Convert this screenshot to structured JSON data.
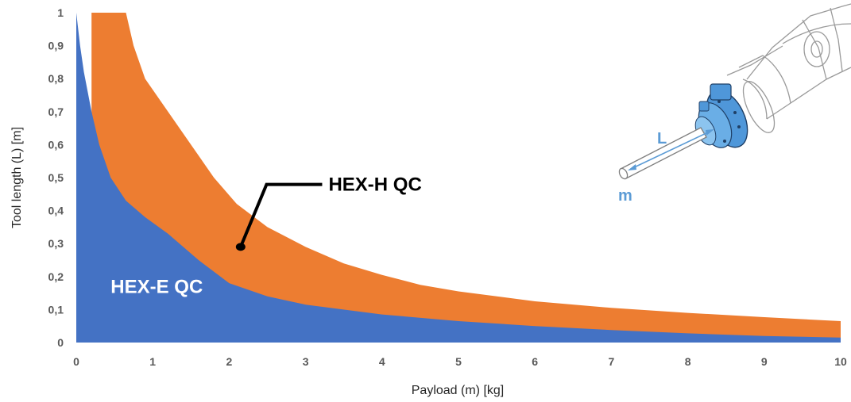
{
  "chart_data": {
    "type": "area",
    "title": "",
    "xlabel": "Payload (m) [kg]",
    "ylabel": "Tool length (L)  [m]",
    "xlim": [
      0,
      10
    ],
    "ylim": [
      0,
      1
    ],
    "grid": false,
    "x_ticks": [
      0,
      1,
      2,
      3,
      4,
      5,
      6,
      7,
      8,
      9,
      10
    ],
    "y_ticks": [
      0,
      0.1,
      0.2,
      0.3,
      0.4,
      0.5,
      0.6,
      0.7,
      0.8,
      0.9,
      1
    ],
    "x_tick_labels": [
      "0",
      "1",
      "2",
      "3",
      "4",
      "5",
      "6",
      "7",
      "8",
      "9",
      "10"
    ],
    "y_tick_labels": [
      "0",
      "0,1",
      "0,2",
      "0,3",
      "0,4",
      "0,5",
      "0,6",
      "0,7",
      "0,8",
      "0,9",
      "1"
    ],
    "series": [
      {
        "name": "HEX-H QC",
        "color": "#ED7D31",
        "points": [
          [
            0.2,
            1
          ],
          [
            0.65,
            1
          ],
          [
            0.75,
            0.9
          ],
          [
            0.9,
            0.8
          ],
          [
            1.2,
            0.7
          ],
          [
            1.5,
            0.6
          ],
          [
            1.8,
            0.5
          ],
          [
            2.1,
            0.42
          ],
          [
            2.5,
            0.35
          ],
          [
            3.0,
            0.29
          ],
          [
            3.5,
            0.24
          ],
          [
            4.0,
            0.205
          ],
          [
            4.5,
            0.175
          ],
          [
            5.0,
            0.155
          ],
          [
            6.0,
            0.125
          ],
          [
            7.0,
            0.105
          ],
          [
            8.0,
            0.09
          ],
          [
            9.0,
            0.077
          ],
          [
            10.0,
            0.065
          ]
        ]
      },
      {
        "name": "HEX-E QC",
        "color": "#4472C4",
        "points": [
          [
            0,
            1
          ],
          [
            0.05,
            0.9
          ],
          [
            0.1,
            0.82
          ],
          [
            0.2,
            0.7
          ],
          [
            0.3,
            0.6
          ],
          [
            0.45,
            0.5
          ],
          [
            0.65,
            0.43
          ],
          [
            0.9,
            0.38
          ],
          [
            1.2,
            0.33
          ],
          [
            1.6,
            0.25
          ],
          [
            2.0,
            0.18
          ],
          [
            2.5,
            0.14
          ],
          [
            3.0,
            0.115
          ],
          [
            4.0,
            0.085
          ],
          [
            5.0,
            0.065
          ],
          [
            6.0,
            0.05
          ],
          [
            7.0,
            0.038
          ],
          [
            8.0,
            0.028
          ],
          [
            9.0,
            0.02
          ],
          [
            10.0,
            0.015
          ]
        ]
      }
    ],
    "annotations": [
      {
        "text": "HEX-H QC",
        "color": "#000000",
        "x": 3.3,
        "y": 0.46,
        "target": [
          2.15,
          0.29
        ]
      },
      {
        "text": "HEX-E QC",
        "color": "#FFFFFF",
        "x": 0.45,
        "y": 0.15
      }
    ],
    "inset": {
      "length_label": "L",
      "mass_label": "m",
      "label_color": "#5B9BD5"
    }
  }
}
